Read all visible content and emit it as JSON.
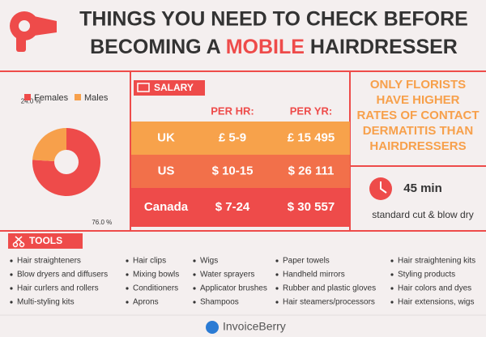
{
  "header": {
    "title_line1": "THINGS YOU NEED TO CHECK BEFORE",
    "title_line2_start": "BECOMING A ",
    "title_line2_highlight": "MOBILE",
    "title_line2_end": " HAIRDRESSER"
  },
  "chart_data": {
    "type": "pie",
    "categories": [
      "Females",
      "Males"
    ],
    "values": [
      76.0,
      24.0
    ],
    "value_labels": [
      "76.0 %",
      "24.0 %"
    ],
    "colors": [
      "#ee4b4a",
      "#f7a04b"
    ],
    "donut": true
  },
  "salary": {
    "title": "SALARY",
    "headers": [
      "PER HR:",
      "PER YR:"
    ],
    "rows": [
      [
        "UK",
        "£ 5-9",
        "£ 15 495"
      ],
      [
        "US",
        "$ 10-15",
        "$ 26 111"
      ],
      [
        "Canada",
        "$ 7-24",
        "$ 30 557"
      ]
    ]
  },
  "fact": {
    "lines": [
      "ONLY FLORISTS",
      "HAVE HIGHER",
      "RATES OF CONTACT",
      "DERMATITIS THAN",
      "HAIRDRESSERS"
    ]
  },
  "time": {
    "value": "45 min",
    "label": "standard cut & blow dry"
  },
  "tools": {
    "title": "TOOLS",
    "columns": [
      [
        "Hair straighteners",
        "Blow dryers and diffusers",
        "Hair curlers and rollers",
        "Multi-styling kits"
      ],
      [
        "Hair clips",
        "Mixing bowls",
        "Conditioners",
        "Aprons"
      ],
      [
        "Wigs",
        "Water sprayers",
        "Applicator brushes",
        "Shampoos"
      ],
      [
        "Paper towels",
        "Handheld mirrors",
        "Rubber and plastic gloves",
        "Hair steamers/processors"
      ],
      [
        "Hair straightening kits",
        "Styling products",
        "Hair colors and dyes",
        "Hair extensions, wigs"
      ]
    ]
  },
  "footer": {
    "brand": "InvoiceBerry"
  }
}
